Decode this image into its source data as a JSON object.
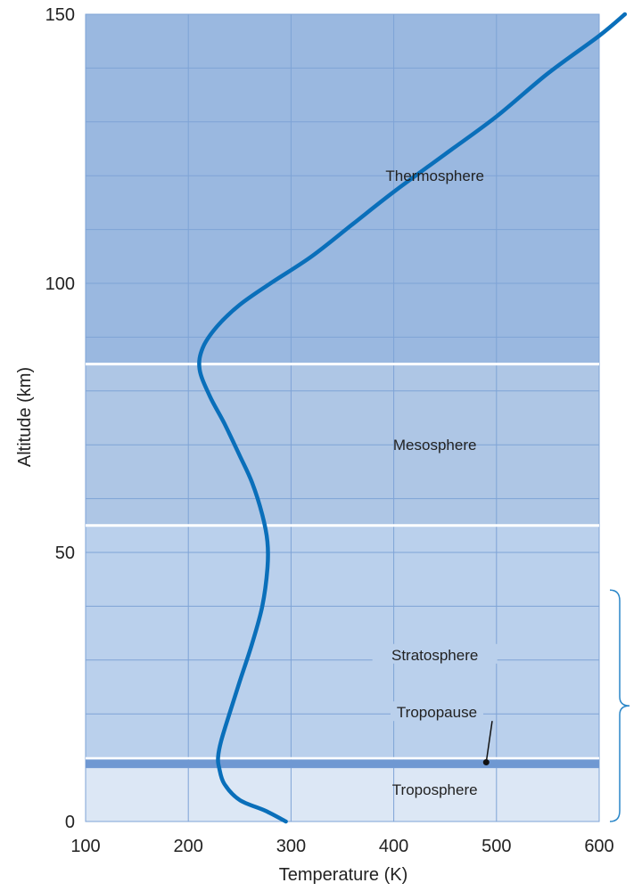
{
  "chart_data": {
    "type": "line",
    "xlabel": "Temperature (K)",
    "ylabel": "Altitude (km)",
    "xlim": [
      100,
      600
    ],
    "ylim": [
      0,
      150
    ],
    "x_ticks": [
      "100",
      "200",
      "300",
      "400",
      "500",
      "600"
    ],
    "y_ticks": [
      "0",
      "50",
      "100",
      "150"
    ],
    "grid": true,
    "series": [
      {
        "color": "#0a6fba",
        "points": [
          [
            295,
            0
          ],
          [
            275,
            2
          ],
          [
            250,
            4
          ],
          [
            235,
            7
          ],
          [
            230,
            10
          ],
          [
            229,
            12
          ],
          [
            232,
            15
          ],
          [
            240,
            20
          ],
          [
            250,
            26
          ],
          [
            262,
            33
          ],
          [
            272,
            40
          ],
          [
            277,
            47
          ],
          [
            277,
            52
          ],
          [
            272,
            57
          ],
          [
            262,
            63
          ],
          [
            250,
            68
          ],
          [
            235,
            74
          ],
          [
            221,
            79
          ],
          [
            211,
            84
          ],
          [
            214,
            88
          ],
          [
            228,
            92
          ],
          [
            250,
            96
          ],
          [
            280,
            100
          ],
          [
            320,
            105
          ],
          [
            360,
            111
          ],
          [
            400,
            117
          ],
          [
            450,
            124
          ],
          [
            500,
            131
          ],
          [
            550,
            139
          ],
          [
            600,
            146
          ],
          [
            625,
            150
          ]
        ]
      }
    ],
    "layers": [
      {
        "name": "Thermosphere",
        "from": 85,
        "to": 150,
        "color": "#9ab8e0"
      },
      {
        "name": "Mesosphere",
        "from": 55,
        "to": 85,
        "color": "#aec6e5"
      },
      {
        "name": "Stratosphere",
        "from": 11,
        "to": 55,
        "color": "#bad0ec"
      },
      {
        "name": "Troposphere",
        "from": 0,
        "to": 11,
        "color": "#dce7f5"
      }
    ],
    "boundaries": [
      85,
      55
    ],
    "tropopause_band": [
      10,
      11.5
    ],
    "annotations": [
      {
        "text": "Tropopause",
        "x": 490,
        "y": 11
      }
    ],
    "bracket": {
      "from": 0,
      "to": 43
    }
  }
}
